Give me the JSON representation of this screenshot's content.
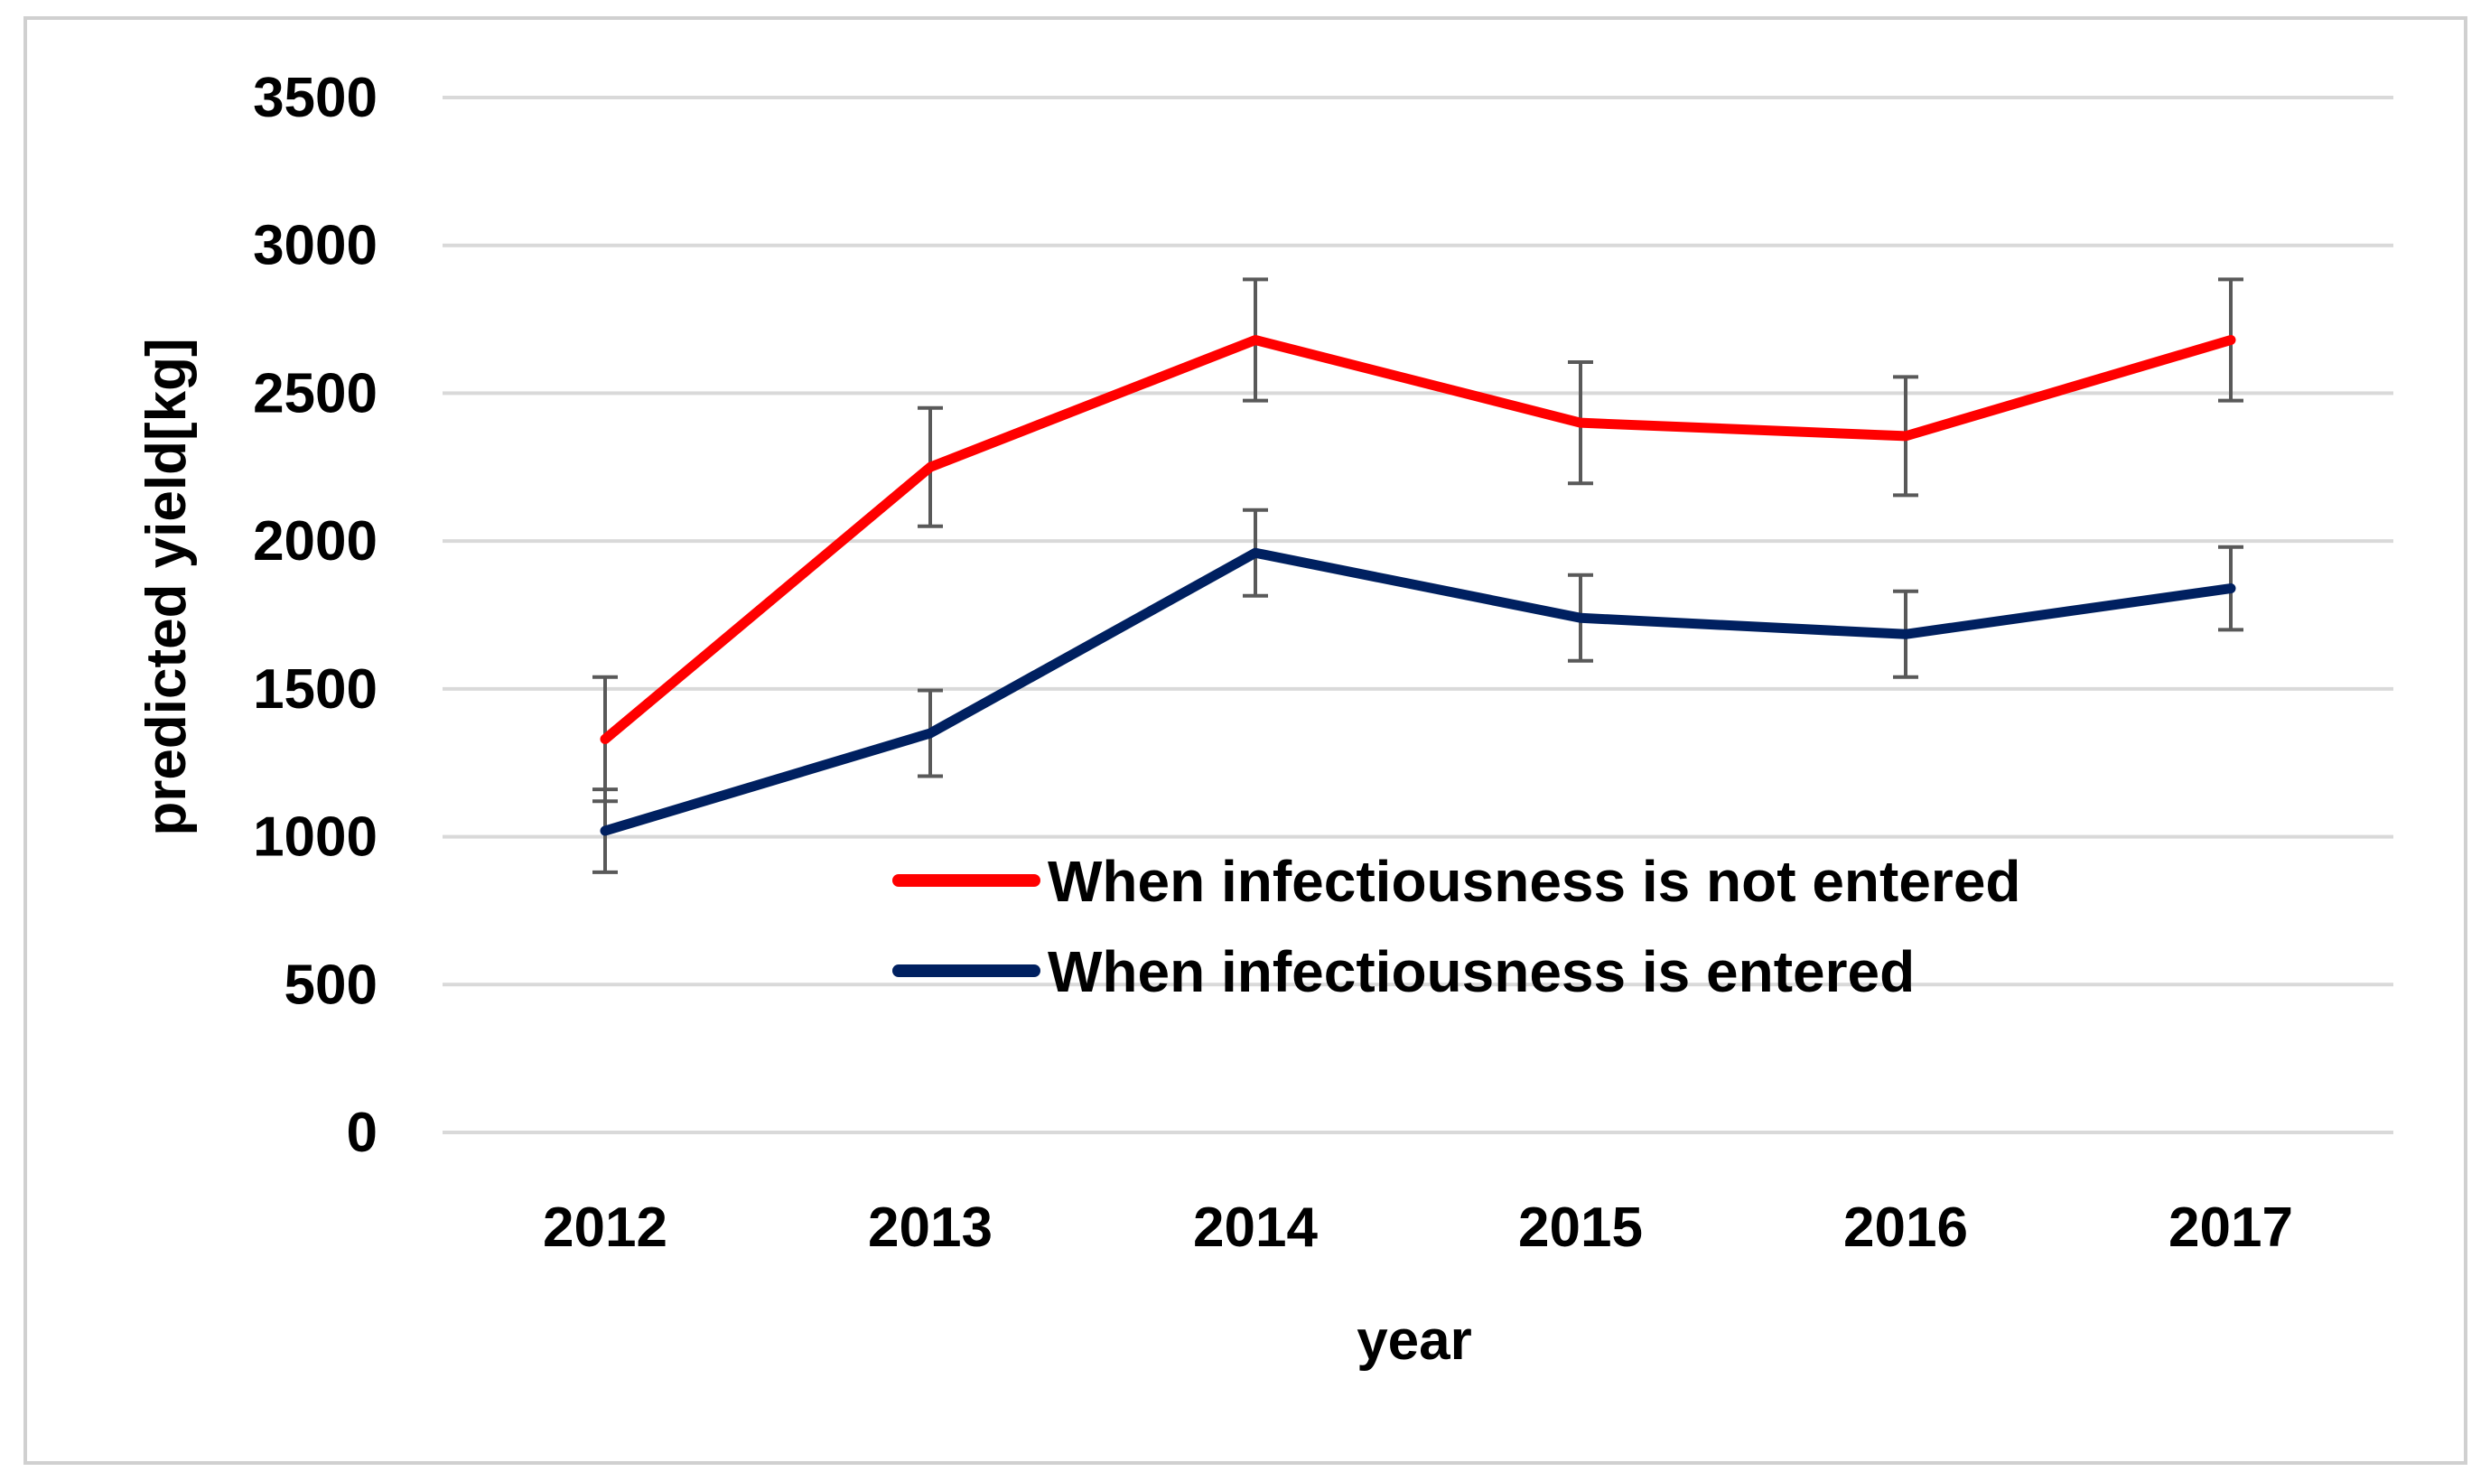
{
  "chart_data": {
    "type": "line",
    "title": "",
    "xlabel": "year",
    "ylabel": "predicted yield[kg]",
    "categories": [
      "2012",
      "2013",
      "2014",
      "2015",
      "2016",
      "2017"
    ],
    "ylim": [
      0,
      3500
    ],
    "yticks": [
      0,
      500,
      1000,
      1500,
      2000,
      2500,
      3000,
      3500
    ],
    "grid": true,
    "legend_position": "center-right",
    "series": [
      {
        "name": "When infectiousness is not entered",
        "color": "#ff0000",
        "values": [
          1330,
          2250,
          2680,
          2400,
          2355,
          2680
        ],
        "error": [
          210,
          200,
          205,
          205,
          200,
          205
        ]
      },
      {
        "name": "When infectiousness is entered",
        "color": "#002060",
        "values": [
          1020,
          1350,
          1960,
          1740,
          1685,
          1840
        ],
        "error": [
          140,
          145,
          145,
          145,
          145,
          140
        ]
      }
    ]
  }
}
